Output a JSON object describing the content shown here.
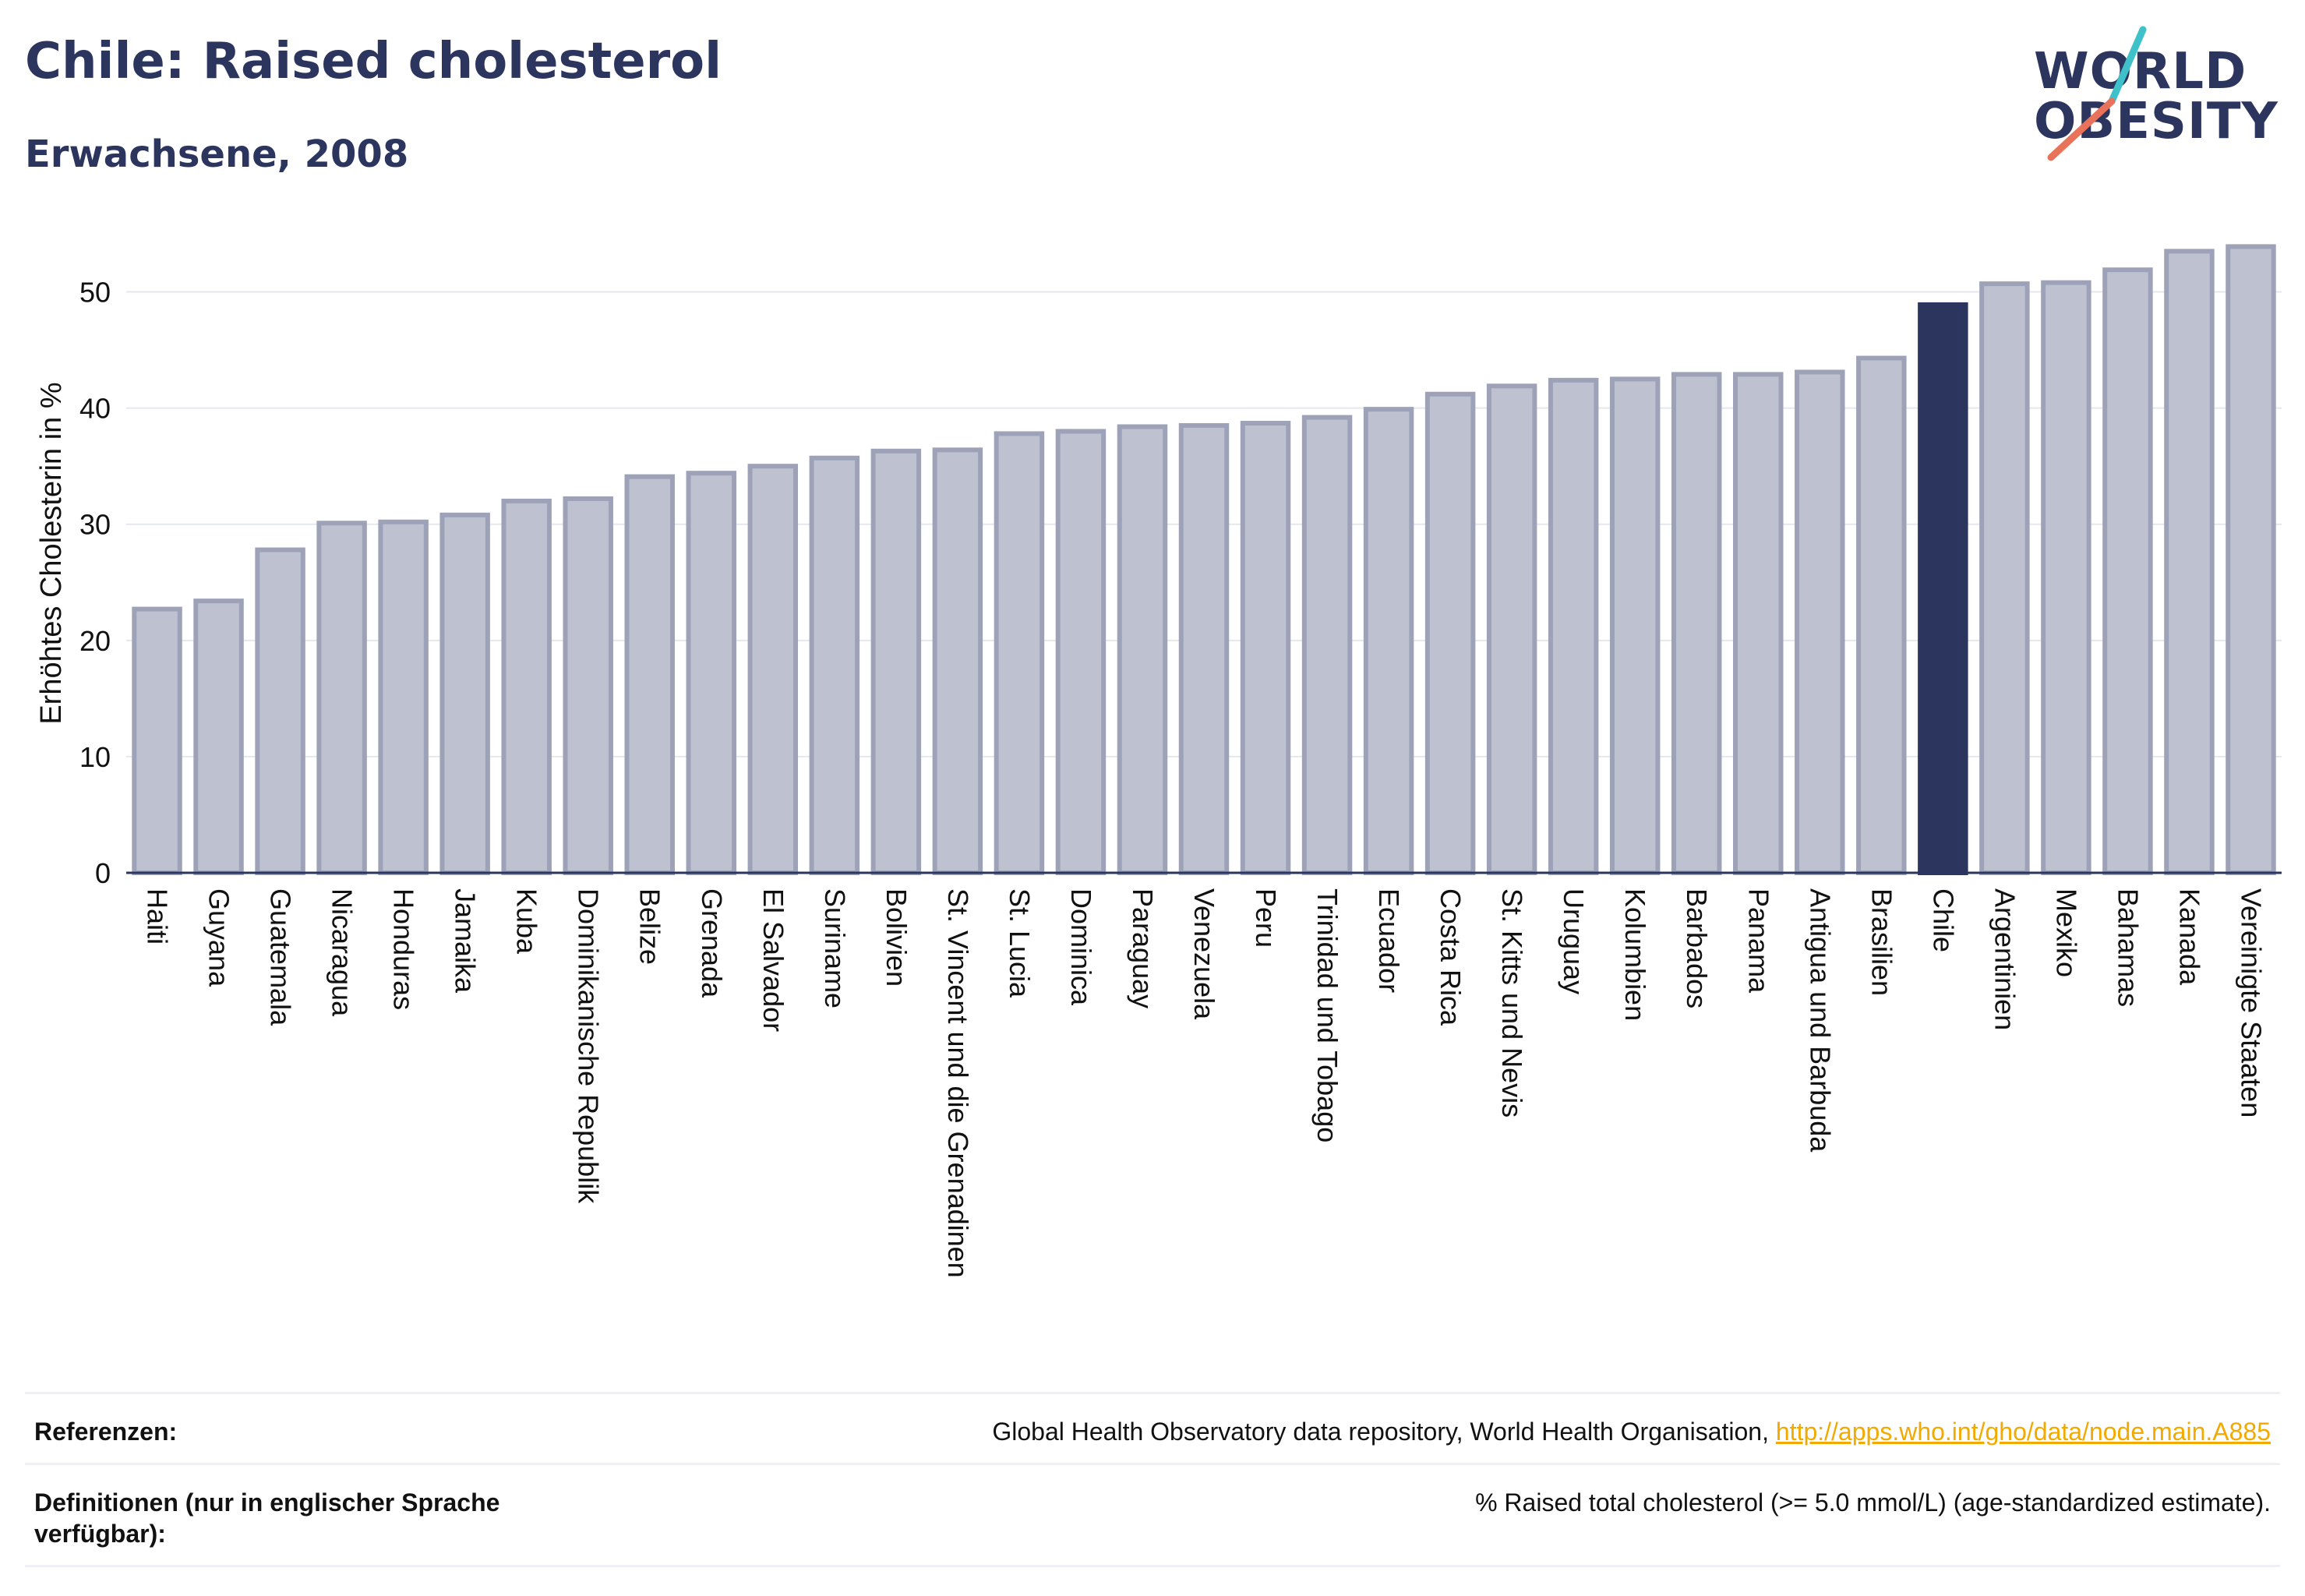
{
  "header": {
    "title": "Chile: Raised cholesterol",
    "subtitle": "Erwachsene, 2008"
  },
  "logo": {
    "line1": "WORLD",
    "line2": "OBESITY",
    "slash_colors": [
      "#3ec1c9",
      "#e8735a"
    ]
  },
  "colors": {
    "bar": "#bec1cf",
    "bar_border": "#9ea2b8",
    "highlight": "#2b355e",
    "grid": "#e5e7ee",
    "axis": "#2b355e"
  },
  "chart_data": {
    "type": "bar",
    "ylabel": "Erhöhtes Cholesterin in %",
    "ylim": [
      0,
      55
    ],
    "yticks": [
      0,
      10,
      20,
      30,
      40,
      50
    ],
    "grid": true,
    "highlight": "Chile",
    "categories": [
      "Haiti",
      "Guyana",
      "Guatemala",
      "Nicaragua",
      "Honduras",
      "Jamaika",
      "Kuba",
      "Dominikanische Republik",
      "Belize",
      "Grenada",
      "El Salvador",
      "Suriname",
      "Bolivien",
      "St. Vincent und die Grenadinen",
      "St. Lucia",
      "Dominica",
      "Paraguay",
      "Venezuela",
      "Peru",
      "Trinidad und Tobago",
      "Ecuador",
      "Costa Rica",
      "St. Kitts und Nevis",
      "Uruguay",
      "Kolumbien",
      "Barbados",
      "Panama",
      "Antigua und Barbuda",
      "Brasilien",
      "Chile",
      "Argentinien",
      "Mexiko",
      "Bahamas",
      "Kanada",
      "Vereinigte Staaten"
    ],
    "values": [
      22.7,
      23.4,
      27.8,
      30.1,
      30.2,
      30.8,
      32.0,
      32.2,
      34.1,
      34.4,
      35.0,
      35.7,
      36.3,
      36.4,
      37.8,
      38.0,
      38.4,
      38.5,
      38.7,
      39.2,
      39.9,
      41.2,
      41.9,
      42.4,
      42.5,
      42.9,
      42.9,
      43.1,
      44.3,
      48.9,
      50.7,
      50.8,
      51.9,
      53.5,
      53.9
    ]
  },
  "references": {
    "label": "Referenzen:",
    "text": "Global Health Observatory data repository, World Health Organisation, ",
    "link": "http://apps.who.int/gho/data/node.main.A885"
  },
  "definitions": {
    "label": "Definitionen (nur in englischer Sprache verfügbar):",
    "text": "% Raised total cholesterol (>= 5.0 mmol/L) (age-standardized estimate)."
  }
}
